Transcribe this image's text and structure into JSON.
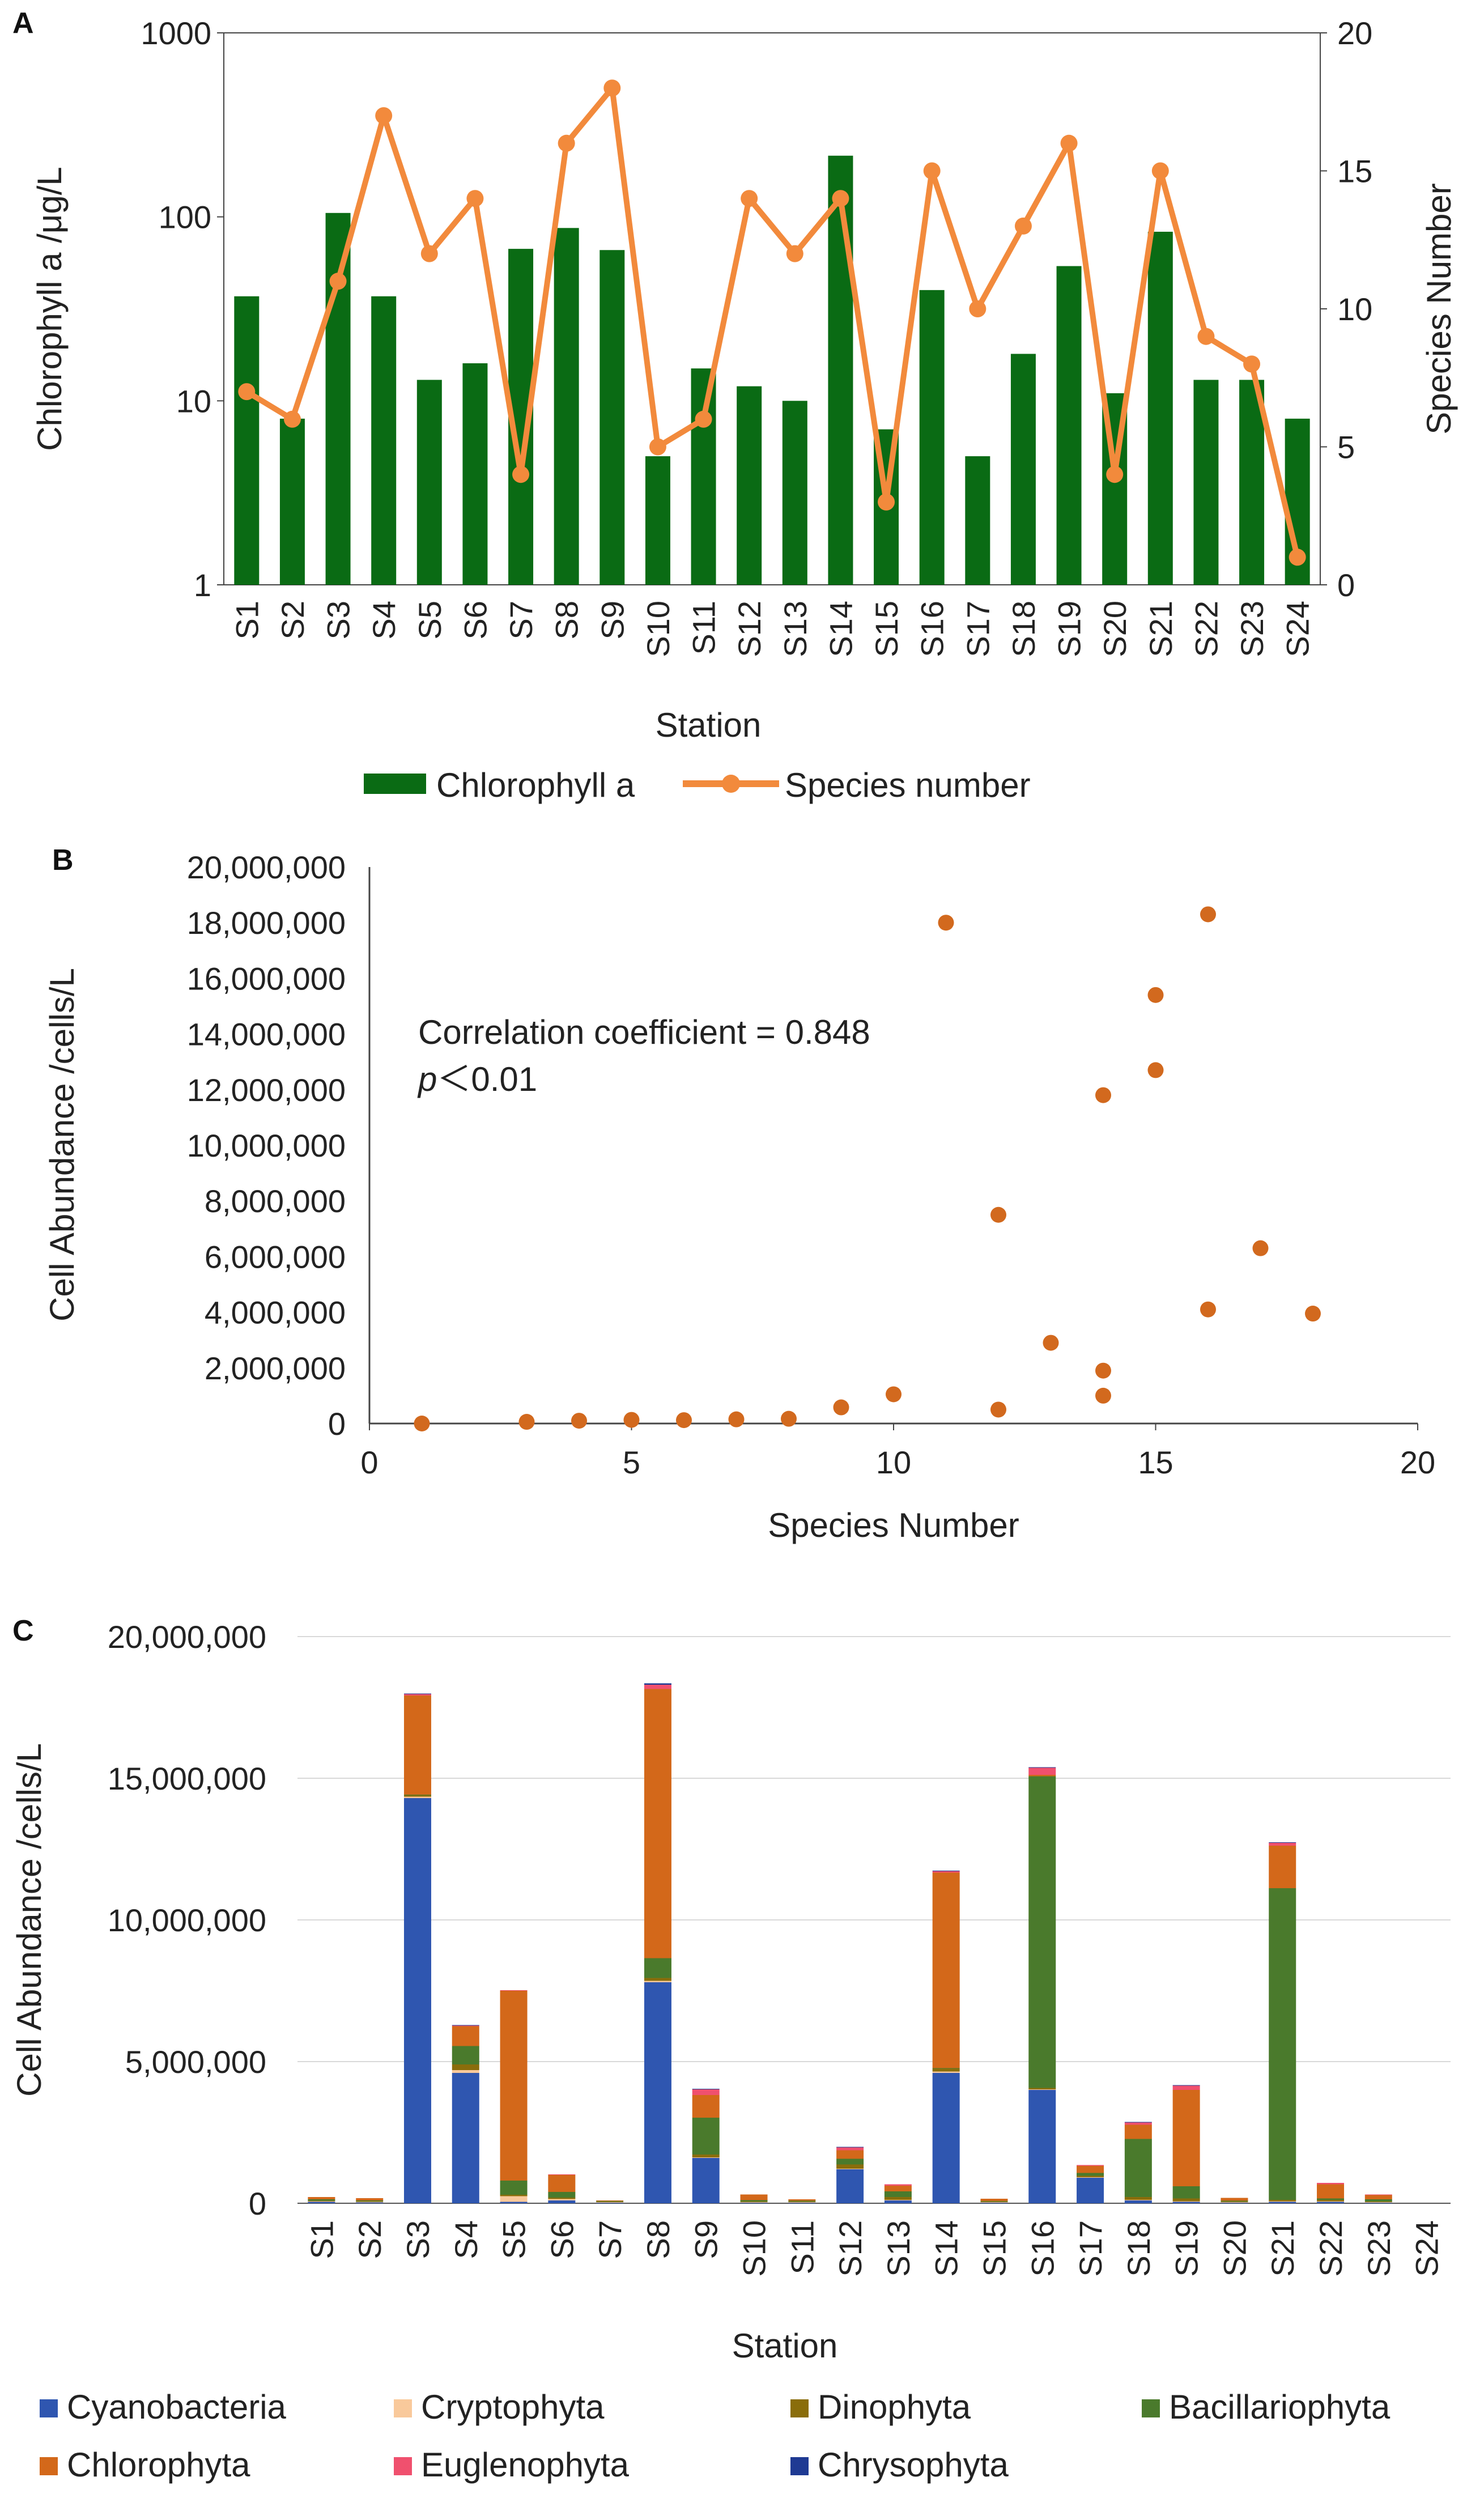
{
  "colors": {
    "chl_bar": "#0a6b14",
    "species_line": "#f28a3c",
    "scatter_point": "#d2691e",
    "Cyanobacteria": "#2f56b0",
    "Cryptophyta": "#f9c99b",
    "Dinophyta": "#8a6d0b",
    "Bacillariophyta": "#4a7a2c",
    "Chlorophyta": "#d3681a",
    "Euglenophyta": "#f0506e",
    "Chrysophyta": "#1f3a93",
    "axis": "#444444"
  },
  "chart_data": [
    {
      "panel_label": "A",
      "type": "bar",
      "stations": [
        "S1",
        "S2",
        "S3",
        "S4",
        "S5",
        "S6",
        "S7",
        "S8",
        "S9",
        "S10",
        "S11",
        "S12",
        "S13",
        "S14",
        "S15",
        "S16",
        "S17",
        "S18",
        "S19",
        "S20",
        "S21",
        "S22",
        "S23",
        "S24"
      ],
      "series": [
        {
          "name": "Chlorophyll a",
          "axis": "left",
          "scale": "log",
          "values": [
            37,
            8,
            105,
            37,
            13,
            16,
            67,
            87,
            66,
            5,
            15,
            12,
            10,
            215,
            7,
            40,
            5,
            18,
            54,
            11,
            83,
            13,
            13,
            8
          ]
        },
        {
          "name": "Species number",
          "axis": "right",
          "type": "line",
          "values": [
            7,
            6,
            11,
            17,
            12,
            14,
            4,
            16,
            18,
            5,
            6,
            14,
            12,
            14,
            3,
            15,
            10,
            13,
            16,
            4,
            15,
            9,
            8,
            1
          ]
        }
      ],
      "xlabel": "Station",
      "ylabel_left": "Chlorophyll a /μg/L",
      "ylabel_right": "Species Number",
      "ylim_left": [
        1,
        1000
      ],
      "yticks_left": [
        "1",
        "10",
        "100",
        "1000"
      ],
      "ylim_right": [
        0,
        20
      ],
      "yticks_right": [
        "0",
        "5",
        "10",
        "15",
        "20"
      ],
      "legend": [
        "Chlorophyll a",
        "Species number"
      ]
    },
    {
      "panel_label": "B",
      "type": "scatter",
      "points": [
        [
          1,
          0
        ],
        [
          3,
          60000
        ],
        [
          4,
          100000
        ],
        [
          5,
          130000
        ],
        [
          6,
          120000
        ],
        [
          7,
          150000
        ],
        [
          8,
          170000
        ],
        [
          9,
          580000
        ],
        [
          10,
          1050000
        ],
        [
          11,
          18000000
        ],
        [
          12,
          7500000
        ],
        [
          12,
          500000
        ],
        [
          13,
          2900000
        ],
        [
          14,
          11800000
        ],
        [
          14,
          1900000
        ],
        [
          14,
          1000000
        ],
        [
          15,
          15400000
        ],
        [
          15,
          12700000
        ],
        [
          16,
          18300000
        ],
        [
          16,
          4100000
        ],
        [
          17,
          6300000
        ],
        [
          18,
          3950000
        ]
      ],
      "xlabel": "Species Number",
      "ylabel": "Cell Abundance /cells/L",
      "xlim": [
        0,
        20
      ],
      "xticks": [
        "0",
        "5",
        "10",
        "15",
        "20"
      ],
      "ylim": [
        0,
        20000000
      ],
      "yticks": [
        "0",
        "2,000,000",
        "4,000,000",
        "6,000,000",
        "8,000,000",
        "10,000,000",
        "12,000,000",
        "14,000,000",
        "16,000,000",
        "18,000,000",
        "20,000,000"
      ],
      "annotation": {
        "line1": "Correlation coefficient = 0.848",
        "p_symbol": "p",
        "p_rest": "＜0.01"
      }
    },
    {
      "panel_label": "C",
      "type": "bar",
      "stacked": true,
      "stations": [
        "S1",
        "S2",
        "S3",
        "S4",
        "S5",
        "S6",
        "S7",
        "S8",
        "S9",
        "S10",
        "S11",
        "S12",
        "S13",
        "S14",
        "S15",
        "S16",
        "S17",
        "S18",
        "S19",
        "S20",
        "S21",
        "S22",
        "S23",
        "S24"
      ],
      "series": [
        {
          "name": "Cyanobacteria",
          "values": [
            50000,
            30000,
            14300000,
            4600000,
            50000,
            100000,
            20000,
            7800000,
            1600000,
            20000,
            20000,
            1200000,
            100000,
            4600000,
            20000,
            4000000,
            900000,
            100000,
            50000,
            20000,
            50000,
            50000,
            20000,
            0
          ]
        },
        {
          "name": "Cryptophyta",
          "values": [
            20000,
            20000,
            50000,
            100000,
            200000,
            50000,
            20000,
            50000,
            20000,
            20000,
            20000,
            20000,
            20000,
            50000,
            20000,
            20000,
            20000,
            20000,
            20000,
            20000,
            20000,
            20000,
            20000,
            0
          ]
        },
        {
          "name": "Dinophyta",
          "values": [
            20000,
            20000,
            50000,
            200000,
            50000,
            50000,
            20000,
            100000,
            100000,
            20000,
            20000,
            150000,
            100000,
            100000,
            20000,
            50000,
            50000,
            100000,
            100000,
            20000,
            50000,
            50000,
            20000,
            0
          ]
        },
        {
          "name": "Bacillariophyta",
          "values": [
            50000,
            30000,
            20000,
            650000,
            500000,
            200000,
            20000,
            700000,
            1300000,
            50000,
            30000,
            200000,
            200000,
            20000,
            20000,
            11000000,
            100000,
            2050000,
            430000,
            30000,
            11000000,
            50000,
            80000,
            0
          ]
        },
        {
          "name": "Chlorophyta",
          "values": [
            80000,
            80000,
            3500000,
            700000,
            6700000,
            600000,
            20000,
            9500000,
            800000,
            200000,
            50000,
            300000,
            200000,
            6900000,
            80000,
            50000,
            250000,
            500000,
            3400000,
            100000,
            1500000,
            500000,
            150000,
            0
          ]
        },
        {
          "name": "Euglenophyta",
          "values": [
            0,
            0,
            50000,
            20000,
            20000,
            20000,
            0,
            150000,
            200000,
            0,
            0,
            100000,
            50000,
            50000,
            0,
            250000,
            30000,
            80000,
            150000,
            0,
            100000,
            50000,
            20000,
            0
          ]
        },
        {
          "name": "Chrysophyta",
          "values": [
            0,
            0,
            20000,
            20000,
            0,
            0,
            0,
            50000,
            20000,
            0,
            0,
            20000,
            0,
            20000,
            0,
            20000,
            0,
            20000,
            20000,
            0,
            20000,
            0,
            0,
            0
          ]
        }
      ],
      "xlabel": "Station",
      "ylabel": "Cell Abundance /cells/L",
      "ylim": [
        0,
        20000000
      ],
      "yticks": [
        "0",
        "5,000,000",
        "10,000,000",
        "15,000,000",
        "20,000,000"
      ],
      "legend": [
        "Cyanobacteria",
        "Cryptophyta",
        "Dinophyta",
        "Bacillariophyta",
        "Chlorophyta",
        "Euglenophyta",
        "Chrysophyta"
      ]
    }
  ]
}
